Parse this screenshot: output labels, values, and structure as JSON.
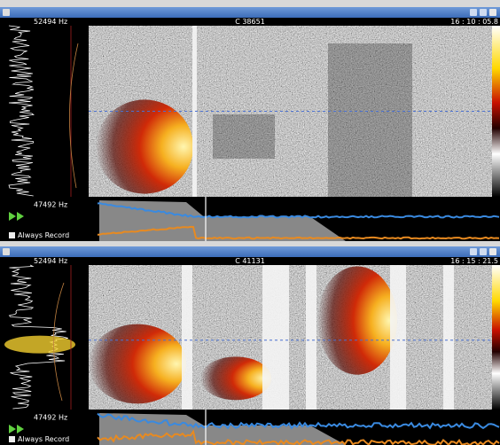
{
  "windows": [
    {
      "title_bar": {
        "frequency": "52494 Hz",
        "counter": "C 38651",
        "time": "16 : 10 : 05.8"
      },
      "controls": {
        "frequency": "47492 Hz",
        "checkbox_label": "Always Record"
      }
    },
    {
      "title_bar": {
        "frequency": "52494 Hz",
        "counter": "C 41131",
        "time": "16 : 15 : 21.5"
      },
      "controls": {
        "frequency": "47492 Hz",
        "checkbox_label": "Always Record"
      }
    }
  ]
}
